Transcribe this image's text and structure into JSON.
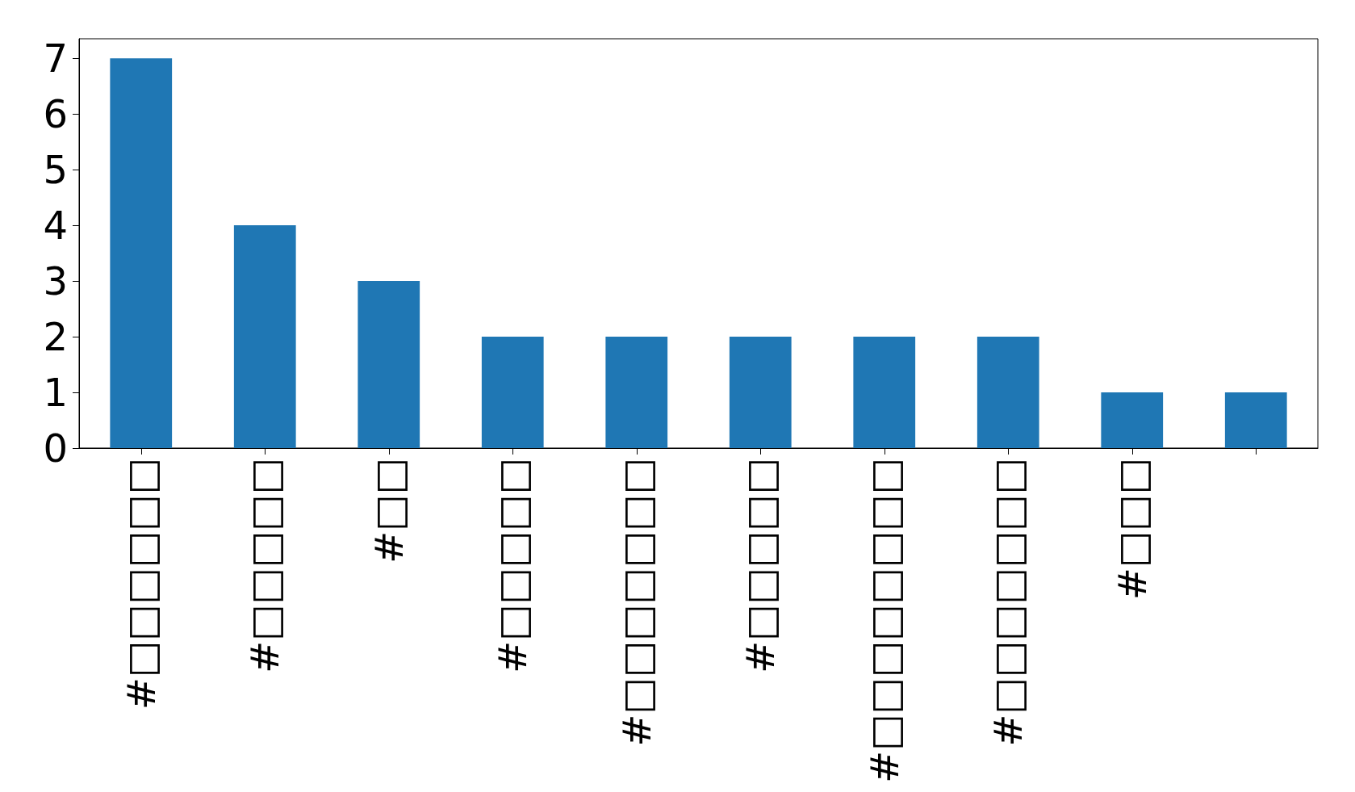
{
  "chart_data": {
    "type": "bar",
    "categories": [
      "#□□□□□□",
      "#□□□□□",
      "#□□",
      "#□□□□□",
      "#□□□□□□□",
      "#□□□□□",
      "#□□□□□□□□",
      "#□□□□□□□",
      "#□□□",
      null
    ],
    "values": [
      7,
      4,
      3,
      2,
      2,
      2,
      2,
      2,
      1,
      1
    ],
    "color": "#1f77b4",
    "ylim": [
      0,
      7.35
    ],
    "yticks": [
      0,
      1,
      2,
      3,
      4,
      5,
      6,
      7
    ],
    "grid": false
  }
}
